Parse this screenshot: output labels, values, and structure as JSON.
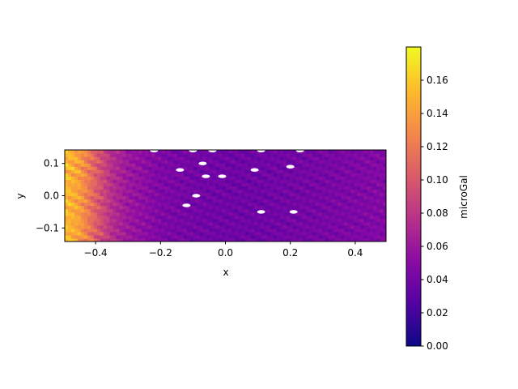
{
  "chart_data": {
    "type": "heatmap",
    "title": "",
    "xlabel": "x",
    "ylabel": "y",
    "xlim": [
      -0.495,
      0.495
    ],
    "ylim": [
      -0.142,
      0.142
    ],
    "x_ticks": [
      {
        "value": -0.4,
        "label": "−0.4"
      },
      {
        "value": -0.2,
        "label": "−0.2"
      },
      {
        "value": 0.0,
        "label": "0.0"
      },
      {
        "value": 0.2,
        "label": "0.2"
      },
      {
        "value": 0.4,
        "label": "0.4"
      }
    ],
    "y_ticks": [
      {
        "value": -0.1,
        "label": "−0.1"
      },
      {
        "value": 0.0,
        "label": "0.0"
      },
      {
        "value": 0.1,
        "label": "0.1"
      }
    ],
    "colormap": "plasma",
    "colorbar": {
      "label": "microGal",
      "range": [
        0.0,
        0.18
      ],
      "ticks": [
        {
          "value": 0.0,
          "label": "0.00"
        },
        {
          "value": 0.02,
          "label": "0.02"
        },
        {
          "value": 0.04,
          "label": "0.04"
        },
        {
          "value": 0.06,
          "label": "0.06"
        },
        {
          "value": 0.08,
          "label": "0.08"
        },
        {
          "value": 0.1,
          "label": "0.10"
        },
        {
          "value": 0.12,
          "label": "0.12"
        },
        {
          "value": 0.14,
          "label": "0.14"
        },
        {
          "value": 0.16,
          "label": "0.16"
        }
      ]
    },
    "x_profile": {
      "x": [
        -0.495,
        -0.45,
        -0.4,
        -0.35,
        -0.3,
        -0.2,
        -0.1,
        0.0,
        0.1,
        0.2,
        0.3,
        0.4,
        0.495
      ],
      "value": [
        0.155,
        0.14,
        0.105,
        0.075,
        0.06,
        0.045,
        0.04,
        0.038,
        0.038,
        0.04,
        0.042,
        0.045,
        0.048
      ]
    },
    "masked_regions": [
      {
        "x": -0.22,
        "y": 0.14
      },
      {
        "x": -0.1,
        "y": 0.14
      },
      {
        "x": -0.04,
        "y": 0.14
      },
      {
        "x": 0.11,
        "y": 0.14
      },
      {
        "x": 0.23,
        "y": 0.14
      },
      {
        "x": -0.07,
        "y": 0.1
      },
      {
        "x": -0.14,
        "y": 0.08
      },
      {
        "x": -0.06,
        "y": 0.06
      },
      {
        "x": -0.01,
        "y": 0.06
      },
      {
        "x": 0.09,
        "y": 0.08
      },
      {
        "x": 0.2,
        "y": 0.09
      },
      {
        "x": -0.09,
        "y": 0.0
      },
      {
        "x": -0.12,
        "y": -0.03
      },
      {
        "x": 0.11,
        "y": -0.05
      },
      {
        "x": 0.21,
        "y": -0.05
      }
    ]
  }
}
